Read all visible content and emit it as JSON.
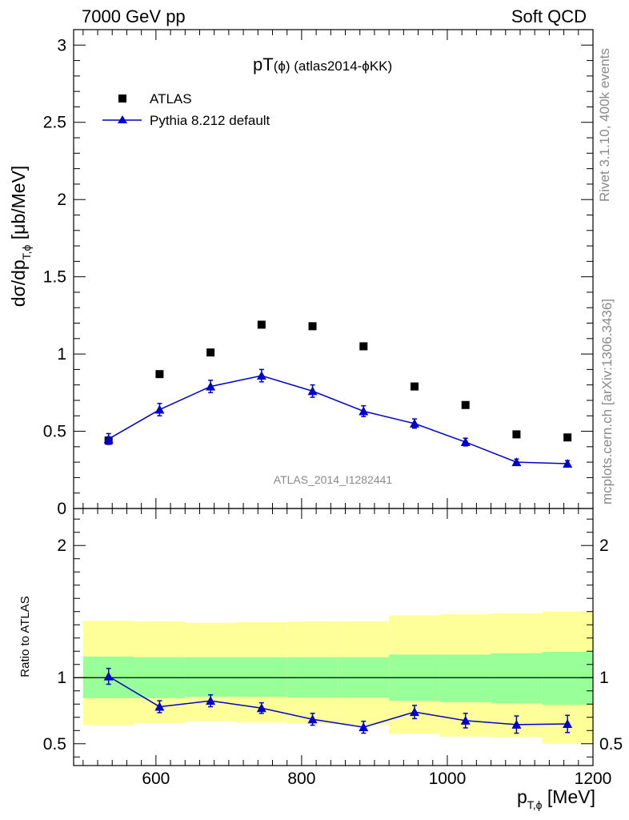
{
  "header": {
    "left": "7000 GeV pp",
    "right": "Soft QCD"
  },
  "side": {
    "rivet": "Rivet 3.1.10,  400k events",
    "mcplots": "mcplots.cern.ch [arXiv:1306.3436]"
  },
  "plot_title": {
    "main": "pT",
    "paren": "(ϕ)",
    "rest": " (atlas2014-ϕKK)"
  },
  "watermark": "ATLAS_2014_I1282441",
  "colors": {
    "mc": "#0000cc",
    "band_inner": "#99ff99",
    "band_outer": "#ffff99",
    "data": "#000000"
  },
  "chart_data": [
    {
      "type": "scatter",
      "panel": "main",
      "ylabel": {
        "main": "dσ/dp",
        "sub": "T,ϕ",
        "unit": " [μb/MeV]"
      },
      "xlim": [
        487,
        1200
      ],
      "ylim": [
        0,
        3.1
      ],
      "yticks": [
        {
          "v": 0,
          "label": "0"
        },
        {
          "v": 0.5,
          "label": "0.5"
        },
        {
          "v": 1,
          "label": "1"
        },
        {
          "v": 1.5,
          "label": "1.5"
        },
        {
          "v": 2,
          "label": "2"
        },
        {
          "v": 2.5,
          "label": "2.5"
        },
        {
          "v": 3,
          "label": "3"
        }
      ],
      "legend_position": "top-left",
      "series": [
        {
          "name": "ATLAS",
          "marker": "square",
          "x": [
            535,
            605,
            675,
            745,
            815,
            885,
            955,
            1025,
            1095,
            1165
          ],
          "y": [
            0.44,
            0.87,
            1.01,
            1.19,
            1.18,
            1.05,
            0.79,
            0.67,
            0.48,
            0.46
          ]
        },
        {
          "name": "Pythia 8.212 default",
          "marker": "triangle",
          "x": [
            535,
            605,
            675,
            745,
            815,
            885,
            955,
            1025,
            1095,
            1165
          ],
          "y": [
            0.45,
            0.64,
            0.79,
            0.86,
            0.76,
            0.63,
            0.55,
            0.43,
            0.3,
            0.29
          ],
          "yerr": [
            0.035,
            0.04,
            0.04,
            0.04,
            0.04,
            0.035,
            0.03,
            0.025,
            0.02,
            0.02
          ]
        }
      ]
    },
    {
      "type": "line",
      "panel": "ratio",
      "ylabel": "Ratio to ATLAS",
      "xlabel": {
        "main": "p",
        "sub": "T,ϕ",
        "unit": " [MeV]"
      },
      "xlim": [
        487,
        1200
      ],
      "ylim": [
        0.335,
        2.28
      ],
      "xticks": [
        {
          "v": 600,
          "label": "600"
        },
        {
          "v": 800,
          "label": "800"
        },
        {
          "v": 1000,
          "label": "1000"
        },
        {
          "v": 1200,
          "label": "1200"
        }
      ],
      "yticks": [
        {
          "v": 0.5,
          "label": "0.5"
        },
        {
          "v": 1,
          "label": "1"
        },
        {
          "v": 2,
          "label": "2"
        }
      ],
      "bands": {
        "edges": [
          500,
          570,
          640,
          710,
          780,
          850,
          920,
          990,
          1060,
          1130,
          1200
        ],
        "inner_lo": [
          0.845,
          0.845,
          0.855,
          0.855,
          0.85,
          0.85,
          0.825,
          0.815,
          0.805,
          0.795
        ],
        "inner_hi": [
          1.16,
          1.155,
          1.155,
          1.155,
          1.155,
          1.155,
          1.175,
          1.175,
          1.185,
          1.195
        ],
        "outer_lo": [
          0.64,
          0.655,
          0.67,
          0.66,
          0.65,
          0.645,
          0.575,
          0.555,
          0.55,
          0.5
        ],
        "outer_hi": [
          1.43,
          1.425,
          1.415,
          1.42,
          1.425,
          1.425,
          1.47,
          1.48,
          1.485,
          1.5
        ]
      },
      "series": [
        {
          "name": "Pythia 8.212 default",
          "x": [
            535,
            605,
            675,
            745,
            815,
            885,
            955,
            1025,
            1095,
            1165
          ],
          "y": [
            1.01,
            0.78,
            0.825,
            0.77,
            0.685,
            0.625,
            0.74,
            0.675,
            0.645,
            0.65
          ],
          "yerr": [
            0.06,
            0.045,
            0.045,
            0.04,
            0.045,
            0.045,
            0.05,
            0.055,
            0.065,
            0.065
          ]
        }
      ]
    }
  ]
}
